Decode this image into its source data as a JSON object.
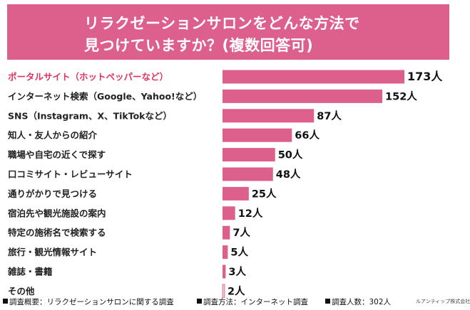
{
  "title": {
    "line1": "リラクゼーションサロンをどんな方法で",
    "line2": "見つけていますか？(複数回答可)"
  },
  "colors": {
    "header": "#dc5f8c",
    "bar": "#dc5f8c",
    "bar_last": "#f2c4d6",
    "highlight_text": "#e0335f"
  },
  "chart_data": {
    "type": "bar",
    "orientation": "horizontal",
    "categories": [
      "ポータルサイト（ホットペッパーなど）",
      "インターネット検索（Google、Yahoo!など）",
      "SNS（Instagram、X、TikTokなど）",
      "知人・友人からの紹介",
      "職場や自宅の近くで探す",
      "口コミサイト・レビューサイト",
      "通りがかりで見つける",
      "宿泊先や観光施設の案内",
      "特定の施術名で検索する",
      "旅行・観光情報サイト",
      "雑誌・書籍",
      "その他"
    ],
    "values": [
      173,
      152,
      87,
      66,
      50,
      48,
      25,
      12,
      7,
      5,
      3,
      2
    ],
    "value_labels": [
      "173人",
      "152人",
      "87人",
      "66人",
      "50人",
      "48人",
      "25人",
      "12人",
      "7人",
      "5人",
      "3人",
      "2人"
    ],
    "highlight_index": 0,
    "xlim": [
      0,
      173
    ]
  },
  "footer": {
    "survey_summary": "調査概要：リラクゼーションサロンに関する調査",
    "survey_method": "調査方法：インターネット調査",
    "respondents": "調査人数：302人",
    "company": "ルアンティップ株式会社"
  }
}
